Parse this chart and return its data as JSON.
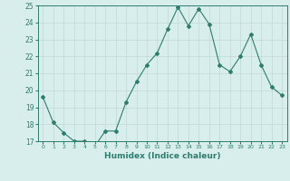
{
  "x": [
    0,
    1,
    2,
    3,
    4,
    5,
    6,
    7,
    8,
    9,
    10,
    11,
    12,
    13,
    14,
    15,
    16,
    17,
    18,
    19,
    20,
    21,
    22,
    23
  ],
  "y": [
    19.6,
    18.1,
    17.5,
    17.0,
    17.0,
    16.7,
    17.6,
    17.6,
    19.3,
    20.5,
    21.5,
    22.2,
    23.6,
    24.9,
    23.8,
    24.8,
    23.9,
    21.5,
    21.1,
    22.0,
    23.3,
    21.5,
    20.2,
    19.7
  ],
  "line_color": "#2e7d6e",
  "marker": "D",
  "marker_size": 2.0,
  "bg_color": "#d8eeec",
  "grid_color": "#c0d8d4",
  "xlabel": "Humidex (Indice chaleur)",
  "ylim": [
    17,
    25
  ],
  "xlim_min": -0.5,
  "xlim_max": 23.5,
  "yticks": [
    17,
    18,
    19,
    20,
    21,
    22,
    23,
    24,
    25
  ],
  "xticks": [
    0,
    1,
    2,
    3,
    4,
    5,
    6,
    7,
    8,
    9,
    10,
    11,
    12,
    13,
    14,
    15,
    16,
    17,
    18,
    19,
    20,
    21,
    22,
    23
  ],
  "tick_color": "#2e7d6e",
  "label_color": "#2e7d6e",
  "spine_color": "#2e7d6e"
}
